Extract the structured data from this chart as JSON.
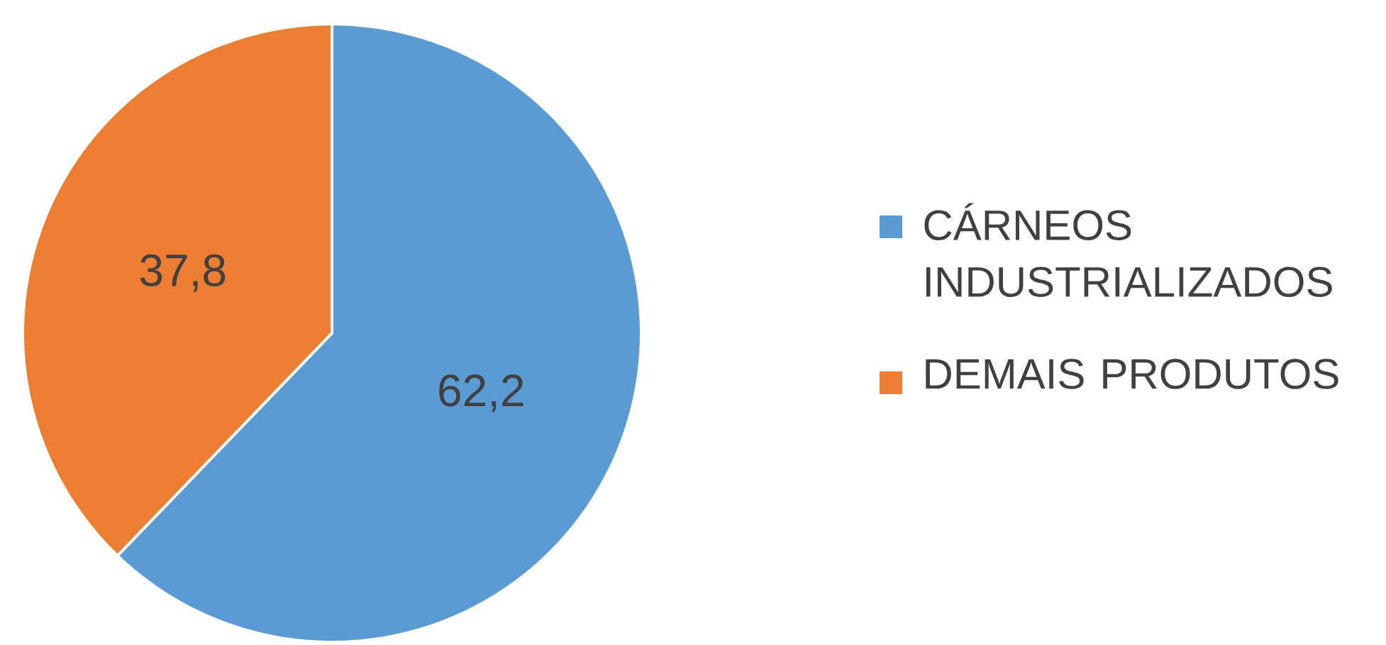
{
  "chart_data": {
    "type": "pie",
    "categories": [
      "CÁRNEOS INDUSTRIALIZADOS",
      "DEMAIS PRODUTOS"
    ],
    "values": [
      62.2,
      37.8
    ],
    "colors": [
      "#5b9bd5",
      "#ed7d31"
    ],
    "value_labels": [
      "62,2",
      "37,8"
    ],
    "legend": "right"
  }
}
